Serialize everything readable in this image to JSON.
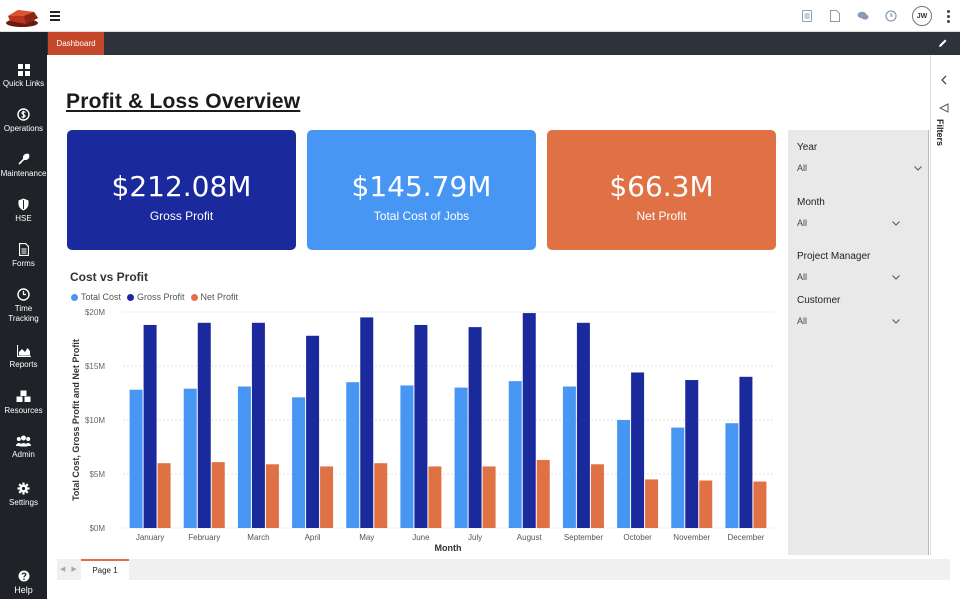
{
  "topbar": {
    "icons": [
      "doc-lines-icon",
      "file-icon",
      "chat-icon",
      "clock-icon"
    ],
    "avatar_initials": "JW"
  },
  "sidebar": {
    "items": [
      {
        "label": "Quick Links",
        "icon": "grid-icon"
      },
      {
        "label": "Operations",
        "icon": "dollar-icon"
      },
      {
        "label": "Maintenance",
        "icon": "wrench-icon"
      },
      {
        "label": "HSE",
        "icon": "shield-icon"
      },
      {
        "label": "Forms",
        "icon": "form-icon"
      },
      {
        "label": "Time",
        "label2": "Tracking",
        "icon": "clock-icon"
      },
      {
        "label": "Reports",
        "icon": "area-chart-icon"
      },
      {
        "label": "Resources",
        "icon": "cubes-icon"
      },
      {
        "label": "Admin",
        "icon": "users-icon"
      },
      {
        "label": "Settings",
        "icon": "gear-icon"
      },
      {
        "label": "Help",
        "icon": "question-icon"
      }
    ]
  },
  "tabs": {
    "active": "Dashboard"
  },
  "report": {
    "title": "Profit & Loss Overview",
    "cards": [
      {
        "value": "$212.08M",
        "label": "Gross Profit",
        "color": "#1a2a9c"
      },
      {
        "value": "$145.79M",
        "label": "Total Cost of Jobs",
        "color": "#4896f3"
      },
      {
        "value": "$66.3M",
        "label": "Net Profit",
        "color": "#e07145"
      }
    ]
  },
  "chart_data": {
    "type": "bar",
    "title": "Cost vs Profit",
    "xlabel": "Month",
    "ylabel": "Total Cost, Gross Profit and Net Profit",
    "ylim": [
      0,
      20
    ],
    "yticks": [
      "$0M",
      "$5M",
      "$10M",
      "$15M",
      "$20M"
    ],
    "ytick_values": [
      0,
      5,
      10,
      15,
      20
    ],
    "grid": true,
    "legend_position": "top-left",
    "categories": [
      "January",
      "February",
      "March",
      "April",
      "May",
      "June",
      "July",
      "August",
      "September",
      "October",
      "November",
      "December"
    ],
    "series": [
      {
        "name": "Total Cost",
        "color": "#4896f3",
        "values": [
          12.8,
          12.9,
          13.1,
          12.1,
          13.5,
          13.2,
          13.0,
          13.6,
          13.1,
          10.0,
          9.3,
          9.7
        ]
      },
      {
        "name": "Gross Profit",
        "color": "#1a2a9c",
        "values": [
          18.8,
          19.0,
          19.0,
          17.8,
          19.5,
          18.8,
          18.6,
          19.9,
          19.0,
          14.4,
          13.7,
          14.0
        ]
      },
      {
        "name": "Net Profit",
        "color": "#e07145",
        "values": [
          6.0,
          6.1,
          5.9,
          5.7,
          6.0,
          5.7,
          5.7,
          6.3,
          5.9,
          4.5,
          4.4,
          4.3
        ]
      }
    ]
  },
  "filters": {
    "label": "Filters",
    "items": [
      {
        "name": "Year",
        "value": "All"
      },
      {
        "name": "Month",
        "value": "All"
      },
      {
        "name": "Project Manager",
        "value": "All"
      },
      {
        "name": "Customer",
        "value": "All"
      }
    ]
  },
  "pages": {
    "active": "Page 1"
  }
}
